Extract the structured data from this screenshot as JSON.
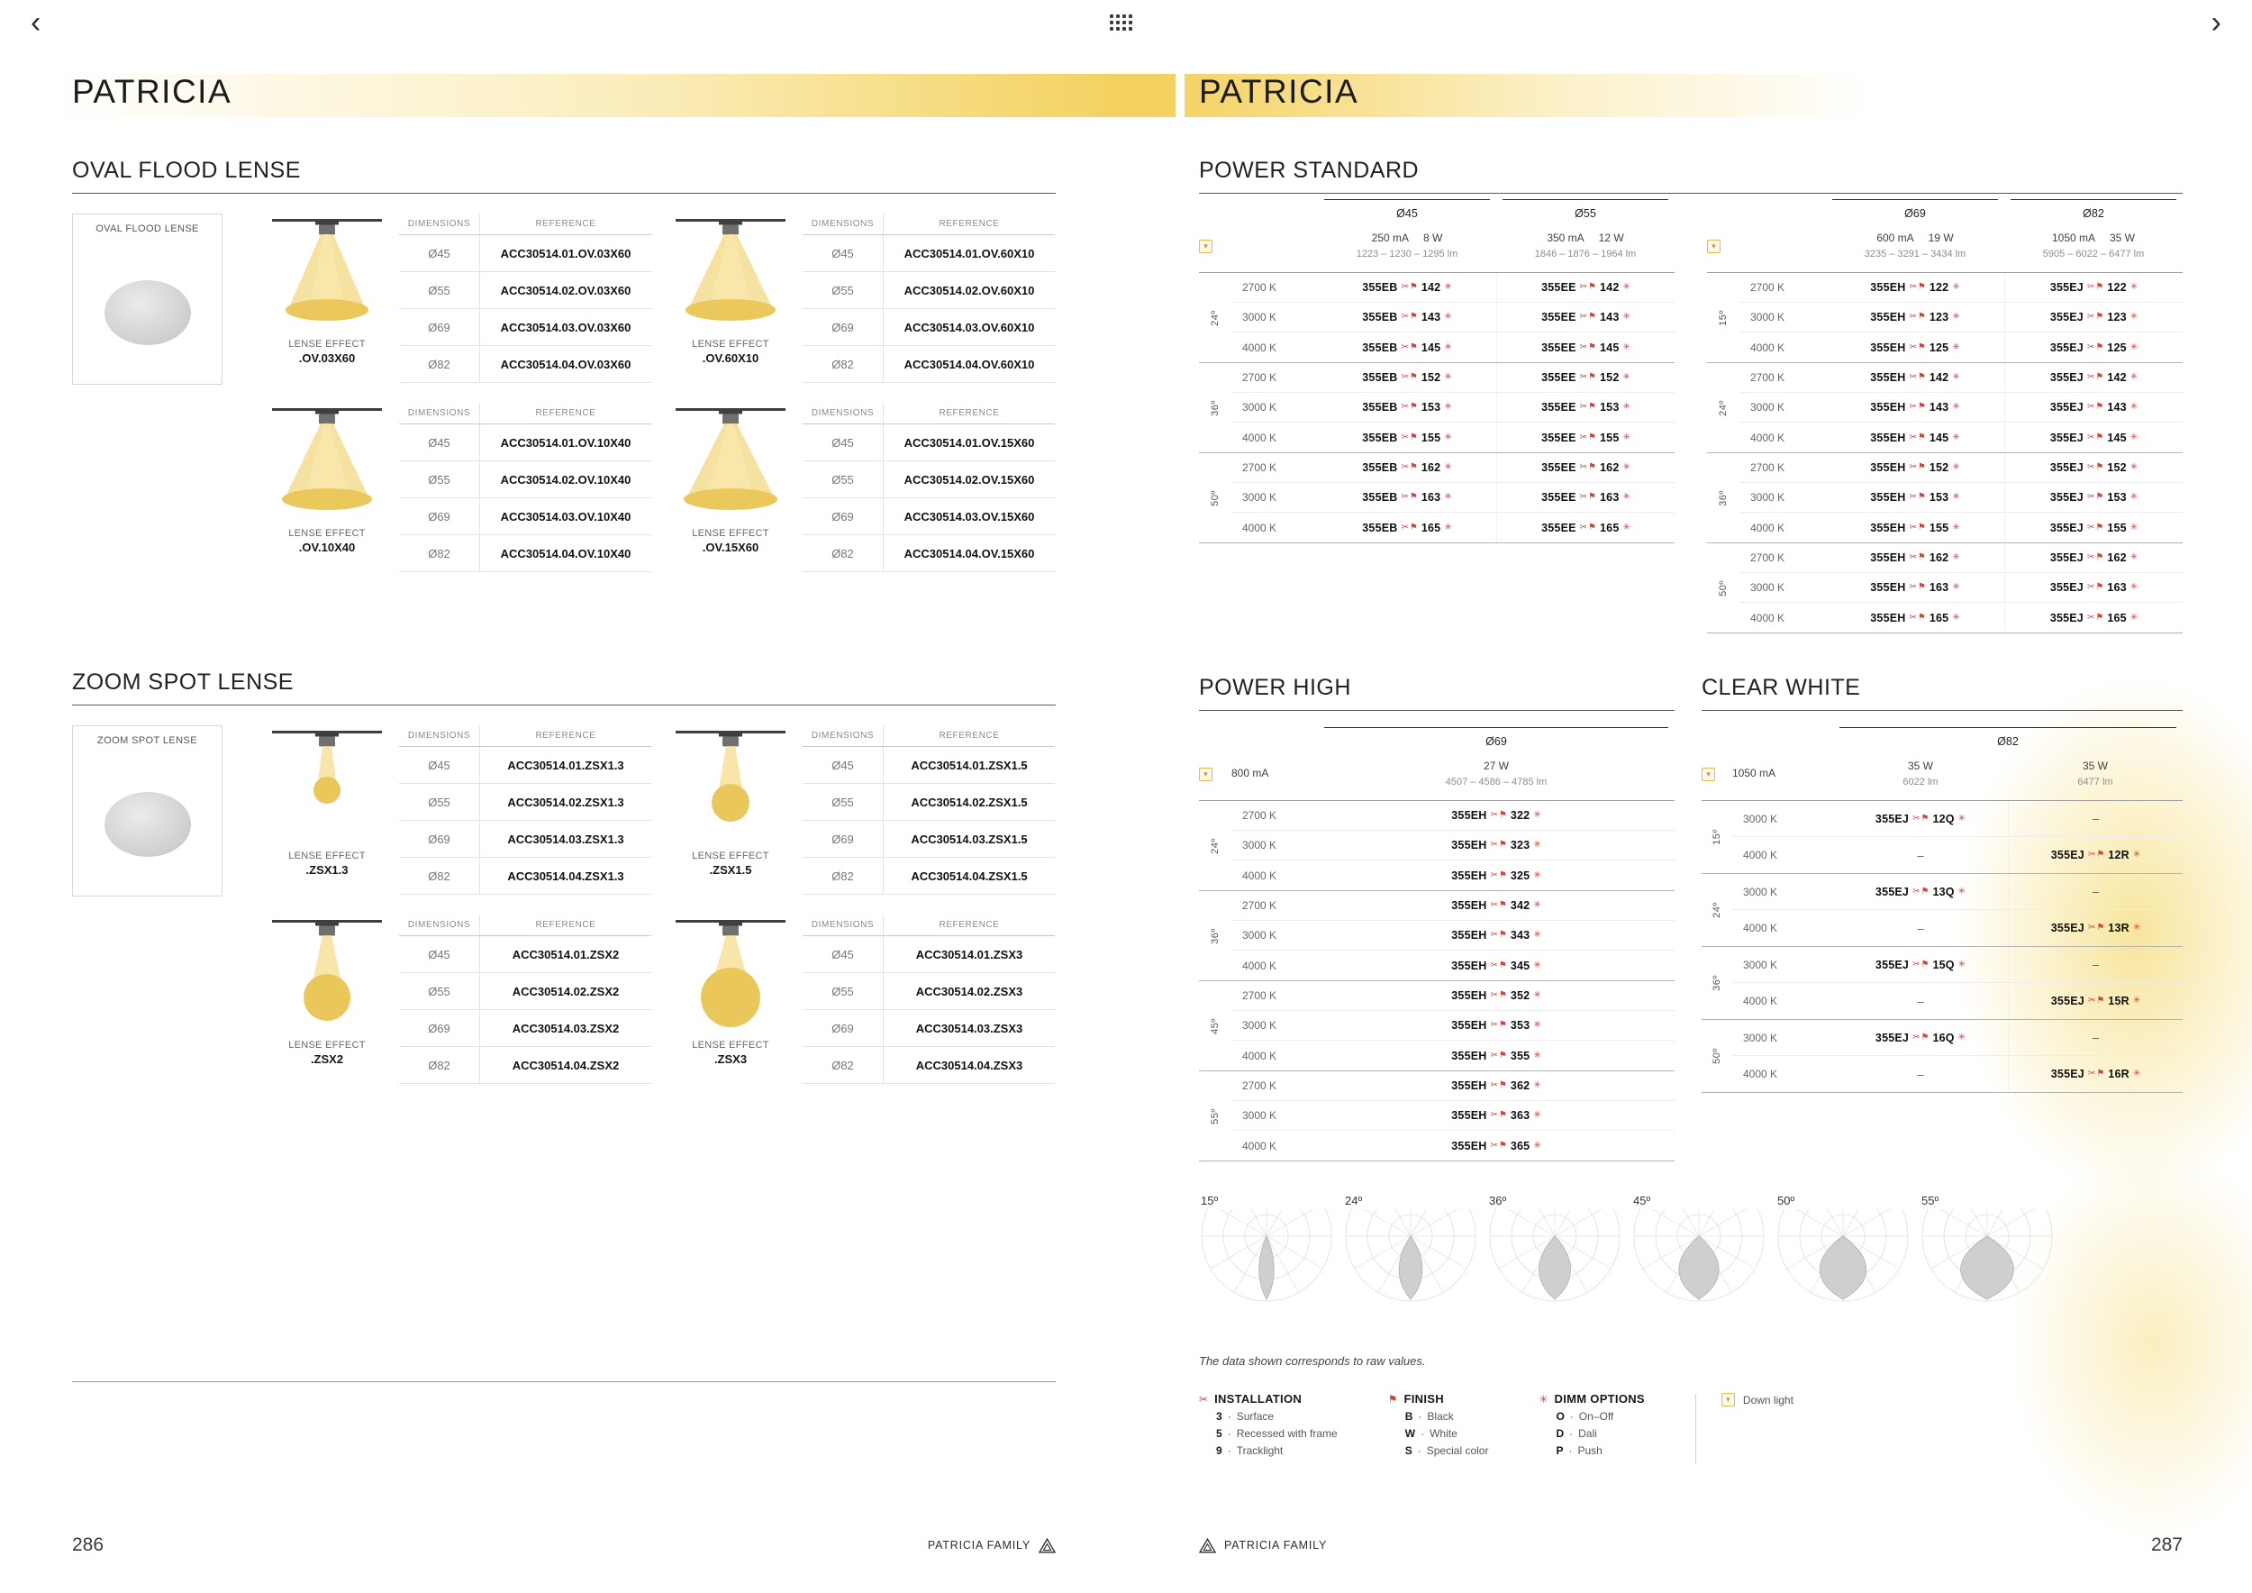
{
  "topbar": {
    "back_icon": "‹",
    "forward_icon": "›"
  },
  "icons": {
    "installation": "✂",
    "finish": "⚑",
    "dimm": "✳",
    "downlight": "▾"
  },
  "colors": {
    "accent_yellow": "#f3d05a",
    "icon_red": "#d4453b"
  },
  "left_page": {
    "title": "PATRICIA",
    "page_number": "286",
    "footer_text": "PATRICIA FAMILY",
    "table_headers": [
      "DIMENSIONS",
      "REFERENCE"
    ],
    "sections": [
      {
        "id": "oval-flood",
        "heading": "OVAL FLOOD LENSE",
        "sample_label": "OVAL FLOOD LENSE",
        "effect_label": "LENSE EFFECT",
        "blocks": [
          {
            "code": ".OV.03X60",
            "figure": "oval",
            "size": 1,
            "rows": [
              [
                "Ø45",
                "ACC30514.01.OV.03X60"
              ],
              [
                "Ø55",
                "ACC30514.02.OV.03X60"
              ],
              [
                "Ø69",
                "ACC30514.03.OV.03X60"
              ],
              [
                "Ø82",
                "ACC30514.04.OV.03X60"
              ]
            ]
          },
          {
            "code": ".OV.60X10",
            "figure": "oval",
            "size": 2,
            "rows": [
              [
                "Ø45",
                "ACC30514.01.OV.60X10"
              ],
              [
                "Ø55",
                "ACC30514.02.OV.60X10"
              ],
              [
                "Ø69",
                "ACC30514.03.OV.60X10"
              ],
              [
                "Ø82",
                "ACC30514.04.OV.60X10"
              ]
            ]
          },
          {
            "code": ".OV.10X40",
            "figure": "oval",
            "size": 3,
            "rows": [
              [
                "Ø45",
                "ACC30514.01.OV.10X40"
              ],
              [
                "Ø55",
                "ACC30514.02.OV.10X40"
              ],
              [
                "Ø69",
                "ACC30514.03.OV.10X40"
              ],
              [
                "Ø82",
                "ACC30514.04.OV.10X40"
              ]
            ]
          },
          {
            "code": ".OV.15X60",
            "figure": "oval",
            "size": 4,
            "rows": [
              [
                "Ø45",
                "ACC30514.01.OV.15X60"
              ],
              [
                "Ø55",
                "ACC30514.02.OV.15X60"
              ],
              [
                "Ø69",
                "ACC30514.03.OV.15X60"
              ],
              [
                "Ø82",
                "ACC30514.04.OV.15X60"
              ]
            ]
          }
        ]
      },
      {
        "id": "zoom-spot",
        "heading": "ZOOM SPOT LENSE",
        "sample_label": "ZOOM SPOT LENSE",
        "effect_label": "LENSE EFFECT",
        "blocks": [
          {
            "code": ".ZSX1.3",
            "figure": "spot",
            "size": 1,
            "rows": [
              [
                "Ø45",
                "ACC30514.01.ZSX1.3"
              ],
              [
                "Ø55",
                "ACC30514.02.ZSX1.3"
              ],
              [
                "Ø69",
                "ACC30514.03.ZSX1.3"
              ],
              [
                "Ø82",
                "ACC30514.04.ZSX1.3"
              ]
            ]
          },
          {
            "code": ".ZSX1.5",
            "figure": "spot",
            "size": 2,
            "rows": [
              [
                "Ø45",
                "ACC30514.01.ZSX1.5"
              ],
              [
                "Ø55",
                "ACC30514.02.ZSX1.5"
              ],
              [
                "Ø69",
                "ACC30514.03.ZSX1.5"
              ],
              [
                "Ø82",
                "ACC30514.04.ZSX1.5"
              ]
            ]
          },
          {
            "code": ".ZSX2",
            "figure": "spot",
            "size": 3,
            "rows": [
              [
                "Ø45",
                "ACC30514.01.ZSX2"
              ],
              [
                "Ø55",
                "ACC30514.02.ZSX2"
              ],
              [
                "Ø69",
                "ACC30514.03.ZSX2"
              ],
              [
                "Ø82",
                "ACC30514.04.ZSX2"
              ]
            ]
          },
          {
            "code": ".ZSX3",
            "figure": "spot",
            "size": 4,
            "rows": [
              [
                "Ø45",
                "ACC30514.01.ZSX3"
              ],
              [
                "Ø55",
                "ACC30514.02.ZSX3"
              ],
              [
                "Ø69",
                "ACC30514.03.ZSX3"
              ],
              [
                "Ø82",
                "ACC30514.04.ZSX3"
              ]
            ]
          }
        ]
      }
    ]
  },
  "right_page": {
    "title": "PATRICIA",
    "page_number": "287",
    "footer_text": "PATRICIA FAMILY",
    "sections": {
      "power_standard": {
        "heading": "POWER STANDARD",
        "tables": [
          {
            "diameters": [
              "Ø45",
              "Ø55"
            ],
            "codes": [
              "355EB",
              "355EE"
            ],
            "specs": [
              {
                "drive": "250 mA",
                "watt": "8 W",
                "lumens": "1223 – 1230 – 1295 lm"
              },
              {
                "drive": "350 mA",
                "watt": "12 W",
                "lumens": "1846 – 1876 – 1964 lm"
              }
            ],
            "groups": [
              {
                "angle": "24º",
                "rows": [
                  {
                    "temp": "2700 K",
                    "values": [
                      "142",
                      "142"
                    ]
                  },
                  {
                    "temp": "3000 K",
                    "values": [
                      "143",
                      "143"
                    ]
                  },
                  {
                    "temp": "4000 K",
                    "values": [
                      "145",
                      "145"
                    ]
                  }
                ]
              },
              {
                "angle": "36º",
                "rows": [
                  {
                    "temp": "2700 K",
                    "values": [
                      "152",
                      "152"
                    ]
                  },
                  {
                    "temp": "3000 K",
                    "values": [
                      "153",
                      "153"
                    ]
                  },
                  {
                    "temp": "4000 K",
                    "values": [
                      "155",
                      "155"
                    ]
                  }
                ]
              },
              {
                "angle": "50º",
                "rows": [
                  {
                    "temp": "2700 K",
                    "values": [
                      "162",
                      "162"
                    ]
                  },
                  {
                    "temp": "3000 K",
                    "values": [
                      "163",
                      "163"
                    ]
                  },
                  {
                    "temp": "4000 K",
                    "values": [
                      "165",
                      "165"
                    ]
                  }
                ]
              }
            ]
          },
          {
            "diameters": [
              "Ø69",
              "Ø82"
            ],
            "codes": [
              "355EH",
              "355EJ"
            ],
            "specs": [
              {
                "drive": "600 mA",
                "watt": "19 W",
                "lumens": "3235 – 3291 – 3434 lm"
              },
              {
                "drive": "1050 mA",
                "watt": "35 W",
                "lumens": "5905 – 6022 – 6477 lm"
              }
            ],
            "groups": [
              {
                "angle": "15º",
                "rows": [
                  {
                    "temp": "2700 K",
                    "values": [
                      "122",
                      "122"
                    ]
                  },
                  {
                    "temp": "3000 K",
                    "values": [
                      "123",
                      "123"
                    ]
                  },
                  {
                    "temp": "4000 K",
                    "values": [
                      "125",
                      "125"
                    ]
                  }
                ]
              },
              {
                "angle": "24º",
                "rows": [
                  {
                    "temp": "2700 K",
                    "values": [
                      "142",
                      "142"
                    ]
                  },
                  {
                    "temp": "3000 K",
                    "values": [
                      "143",
                      "143"
                    ]
                  },
                  {
                    "temp": "4000 K",
                    "values": [
                      "145",
                      "145"
                    ]
                  }
                ]
              },
              {
                "angle": "36º",
                "rows": [
                  {
                    "temp": "2700 K",
                    "values": [
                      "152",
                      "152"
                    ]
                  },
                  {
                    "temp": "3000 K",
                    "values": [
                      "153",
                      "153"
                    ]
                  },
                  {
                    "temp": "4000 K",
                    "values": [
                      "155",
                      "155"
                    ]
                  }
                ]
              },
              {
                "angle": "50º",
                "rows": [
                  {
                    "temp": "2700 K",
                    "values": [
                      "162",
                      "162"
                    ]
                  },
                  {
                    "temp": "3000 K",
                    "values": [
                      "163",
                      "163"
                    ]
                  },
                  {
                    "temp": "4000 K",
                    "values": [
                      "165",
                      "165"
                    ]
                  }
                ]
              }
            ]
          }
        ]
      },
      "power_high": {
        "heading": "POWER HIGH",
        "diameter": "Ø69",
        "drive": "800 mA",
        "watt": "27 W",
        "lumens": "4507 – 4586 – 4785 lm",
        "code": "355EH",
        "groups": [
          {
            "angle": "24º",
            "rows": [
              {
                "temp": "2700 K",
                "value": "322"
              },
              {
                "temp": "3000 K",
                "value": "323"
              },
              {
                "temp": "4000 K",
                "value": "325"
              }
            ]
          },
          {
            "angle": "36º",
            "rows": [
              {
                "temp": "2700 K",
                "value": "342"
              },
              {
                "temp": "3000 K",
                "value": "343"
              },
              {
                "temp": "4000 K",
                "value": "345"
              }
            ]
          },
          {
            "angle": "45º",
            "rows": [
              {
                "temp": "2700 K",
                "value": "352"
              },
              {
                "temp": "3000 K",
                "value": "353"
              },
              {
                "temp": "4000 K",
                "value": "355"
              }
            ]
          },
          {
            "angle": "55º",
            "rows": [
              {
                "temp": "2700 K",
                "value": "362"
              },
              {
                "temp": "3000 K",
                "value": "363"
              },
              {
                "temp": "4000 K",
                "value": "365"
              }
            ]
          }
        ]
      },
      "clear_white": {
        "heading": "CLEAR WHITE",
        "diameter": "Ø82",
        "drive": "1050 mA",
        "specs": [
          {
            "watt": "35 W",
            "lumens": "6022 lm"
          },
          {
            "watt": "35 W",
            "lumens": "6477 lm"
          }
        ],
        "code": "355EJ",
        "empty_marker": "–",
        "groups": [
          {
            "angle": "15º",
            "rows": [
              {
                "temp": "3000 K",
                "values": [
                  "12Q",
                  null
                ]
              },
              {
                "temp": "4000 K",
                "values": [
                  null,
                  "12R"
                ]
              }
            ]
          },
          {
            "angle": "24º",
            "rows": [
              {
                "temp": "3000 K",
                "values": [
                  "13Q",
                  null
                ]
              },
              {
                "temp": "4000 K",
                "values": [
                  null,
                  "13R"
                ]
              }
            ]
          },
          {
            "angle": "36º",
            "rows": [
              {
                "temp": "3000 K",
                "values": [
                  "15Q",
                  null
                ]
              },
              {
                "temp": "4000 K",
                "values": [
                  null,
                  "15R"
                ]
              }
            ]
          },
          {
            "angle": "50º",
            "rows": [
              {
                "temp": "3000 K",
                "values": [
                  "16Q",
                  null
                ]
              },
              {
                "temp": "4000 K",
                "values": [
                  null,
                  "16R"
                ]
              }
            ]
          }
        ]
      },
      "beam_diagrams": {
        "angles": [
          "15º",
          "24º",
          "36º",
          "45º",
          "50º",
          "55º"
        ],
        "note": "The data shown corresponds to raw values."
      },
      "legend": {
        "installation": {
          "title": "INSTALLATION",
          "items": [
            {
              "key": "3",
              "label": "Surface"
            },
            {
              "key": "5",
              "label": "Recessed with frame"
            },
            {
              "key": "9",
              "label": "Tracklight"
            }
          ]
        },
        "finish": {
          "title": "FINISH",
          "items": [
            {
              "key": "B",
              "label": "Black"
            },
            {
              "key": "W",
              "label": "White"
            },
            {
              "key": "S",
              "label": "Special color"
            }
          ]
        },
        "dimm": {
          "title": "DIMM OPTIONS",
          "items": [
            {
              "key": "O",
              "label": "On–Off"
            },
            {
              "key": "D",
              "label": "Dali"
            },
            {
              "key": "P",
              "label": "Push"
            }
          ]
        },
        "downlight_label": "Down light"
      }
    }
  }
}
